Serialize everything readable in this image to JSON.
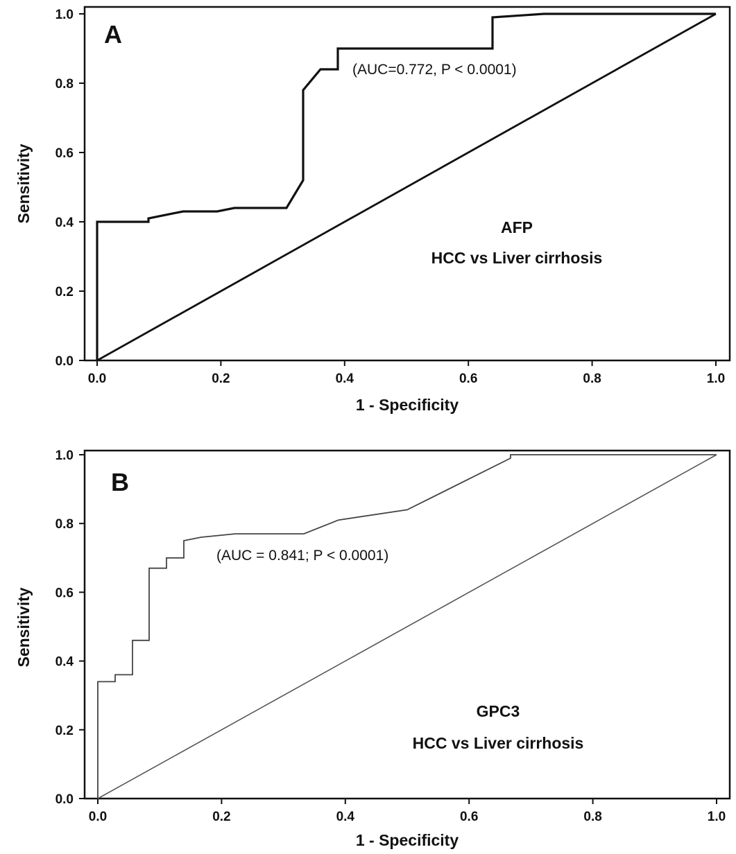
{
  "chart_data": [
    {
      "type": "line",
      "panel_label": "A",
      "xlabel": "1 - Specificity",
      "ylabel": "Sensitivity",
      "xlim": [
        0,
        1
      ],
      "ylim": [
        0,
        1
      ],
      "xticks": [
        "0.0",
        "0.2",
        "0.4",
        "0.6",
        "0.8",
        "1.0"
      ],
      "yticks": [
        "0.0",
        "0.2",
        "0.4",
        "0.6",
        "0.8",
        "1.0"
      ],
      "grid": false,
      "annotations": [
        "(AUC=0.772, P < 0.0001)",
        "AFP",
        "HCC vs Liver cirrhosis"
      ],
      "line_color": "#111111",
      "series": [
        {
          "x": [
            0.0,
            0.0,
            0.083,
            0.083,
            0.139,
            0.194,
            0.222,
            0.306,
            0.333,
            0.333,
            0.361,
            0.389,
            0.389,
            0.639,
            0.639,
            0.722,
            1.0
          ],
          "y": [
            0.0,
            0.4,
            0.4,
            0.41,
            0.43,
            0.43,
            0.44,
            0.44,
            0.52,
            0.78,
            0.84,
            0.84,
            0.9,
            0.9,
            0.99,
            1.0,
            1.0
          ]
        },
        {
          "x": [
            0,
            1
          ],
          "y": [
            0,
            1
          ]
        }
      ]
    },
    {
      "type": "line",
      "panel_label": "B",
      "xlabel": "1 - Specificity",
      "ylabel": "Sensitivity",
      "xlim": [
        0,
        1
      ],
      "ylim": [
        0,
        1
      ],
      "xticks": [
        "0.0",
        "0.2",
        "0.4",
        "0.6",
        "0.8",
        "1.0"
      ],
      "yticks": [
        "0.0",
        "0.2",
        "0.4",
        "0.6",
        "0.8",
        "1.0"
      ],
      "grid": false,
      "annotations": [
        "(AUC = 0.841; P < 0.0001)",
        "GPC3",
        "HCC vs Liver cirrhosis"
      ],
      "line_color": "#444444",
      "series": [
        {
          "x": [
            0.0,
            0.0,
            0.028,
            0.028,
            0.056,
            0.056,
            0.083,
            0.083,
            0.111,
            0.111,
            0.139,
            0.139,
            0.167,
            0.222,
            0.222,
            0.333,
            0.389,
            0.5,
            0.667,
            0.667,
            1.0
          ],
          "y": [
            0.0,
            0.34,
            0.34,
            0.36,
            0.36,
            0.46,
            0.46,
            0.67,
            0.67,
            0.7,
            0.7,
            0.75,
            0.76,
            0.77,
            0.77,
            0.77,
            0.81,
            0.84,
            0.99,
            1.0,
            1.0
          ]
        },
        {
          "x": [
            0,
            1
          ],
          "y": [
            0,
            1
          ]
        }
      ]
    }
  ]
}
